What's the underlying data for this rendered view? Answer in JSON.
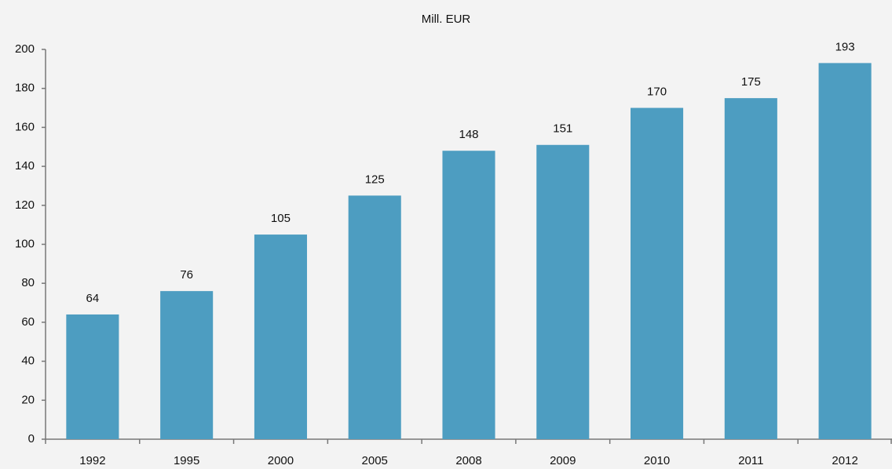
{
  "chart_data": {
    "type": "bar",
    "title": "Mill. EUR",
    "categories": [
      "1992",
      "1995",
      "2000",
      "2005",
      "2008",
      "2009",
      "2010",
      "2011",
      "2012"
    ],
    "values": [
      64,
      76,
      105,
      125,
      148,
      151,
      170,
      175,
      193
    ],
    "color": "#4d9dc1",
    "ylim": [
      0,
      200
    ],
    "yticks": [
      0,
      20,
      40,
      60,
      80,
      100,
      120,
      140,
      160,
      180,
      200
    ],
    "grid": false
  }
}
